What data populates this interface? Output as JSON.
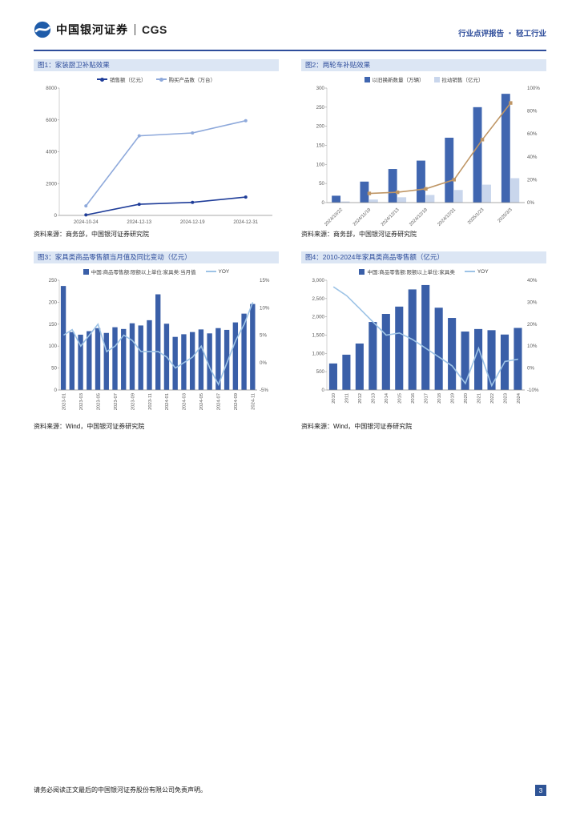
{
  "header": {
    "brand": "中国银河证券",
    "brand_suffix": "CGS",
    "report_type": "行业点评报告",
    "separator": "•",
    "industry": "轻工行业",
    "accent_color": "#2E4D9B"
  },
  "footer": {
    "disclaimer": "请务必阅读正文最后的中国银河证券股份有限公司免责声明。",
    "page_number": "3"
  },
  "chart_data": [
    {
      "figure": "图1",
      "title": "图1：家装厨卫补贴效果",
      "source": "资料来源：商务部，中国银河证券研究院",
      "type": "line",
      "legend_position": "top",
      "grid": false,
      "categories": [
        "2024-10-24",
        "2024-12-13",
        "2024-12-19",
        "2024-12-31"
      ],
      "series": [
        {
          "name": "销售额（亿元）",
          "type": "line",
          "axis": "left",
          "color": "#1F3D99",
          "marker": "circle",
          "values": [
            30,
            700,
            820,
            1150
          ]
        },
        {
          "name": "购买产品数（万台）",
          "type": "line",
          "axis": "left",
          "color": "#8EA9DB",
          "marker": "circle",
          "values": [
            600,
            5000,
            5180,
            5950
          ]
        }
      ],
      "left_axis": {
        "min": 0,
        "max": 8000,
        "ticks": [
          0,
          2000,
          4000,
          6000,
          8000
        ]
      },
      "x_rotate": 0,
      "x_every": 1
    },
    {
      "figure": "图2",
      "title": "图2：两轮车补贴效果",
      "source": "资料来源：商务部，中国银河证券研究院",
      "type": "bar+line",
      "legend_position": "top",
      "grid": false,
      "categories": [
        "2024/10/22",
        "2024/11/19",
        "2024/12/13",
        "2024/12/19",
        "2024/12/31",
        "2025/1/23",
        "2025/3/3"
      ],
      "series": [
        {
          "name": "以旧换新数量（万辆）",
          "type": "bar",
          "axis": "left",
          "color": "#4066B0",
          "values": [
            18,
            55,
            88,
            110,
            170,
            250,
            285
          ]
        },
        {
          "name": "拉动销售（亿元）",
          "type": "bar",
          "axis": "left",
          "color": "#C9D6EC",
          "values": [
            3,
            8,
            14,
            20,
            33,
            47,
            64
          ]
        },
        {
          "name": "",
          "legend": false,
          "type": "line",
          "axis": "right",
          "color": "#BF9665",
          "marker": "square",
          "values": [
            null,
            8,
            9,
            12,
            20,
            55,
            87
          ]
        }
      ],
      "left_axis": {
        "min": 0,
        "max": 300,
        "ticks": [
          0,
          50,
          100,
          150,
          200,
          250,
          300
        ]
      },
      "right_axis": {
        "min": 0,
        "max": 100,
        "ticks": [
          0,
          20,
          40,
          60,
          80,
          100
        ],
        "labels": [
          "0%",
          "20%",
          "40%",
          "60%",
          "80%",
          "100%"
        ]
      },
      "x_rotate": 45,
      "x_every": 1
    },
    {
      "figure": "图3",
      "title": "图3：家具类商品零售额当月值及同比变动（亿元）",
      "source": "资料来源：Wind，中国银河证券研究院",
      "type": "bar+line",
      "legend_position": "top",
      "grid": false,
      "categories": [
        "2023-01",
        "2023-02",
        "2023-03",
        "2023-04",
        "2023-05",
        "2023-06",
        "2023-07",
        "2023-08",
        "2023-09",
        "2023-10",
        "2023-11",
        "2023-12",
        "2024-01",
        "2024-02",
        "2024-03",
        "2024-04",
        "2024-05",
        "2024-06",
        "2024-07",
        "2024-08",
        "2024-09",
        "2024-10",
        "2024-11"
      ],
      "series": [
        {
          "name": "中国:商品零售额:限额以上单位:家具类:当月值",
          "type": "bar",
          "axis": "left",
          "color": "#3A5FA8",
          "values": [
            237,
            132,
            126,
            134,
            141,
            130,
            143,
            139,
            152,
            147,
            159,
            218,
            151,
            121,
            127,
            132,
            138,
            129,
            141,
            137,
            154,
            174,
            196
          ]
        },
        {
          "name": "YOY",
          "type": "line",
          "axis": "right",
          "color": "#9DC3E6",
          "values": [
            5,
            6,
            3,
            5,
            7,
            2,
            3,
            5,
            4,
            2,
            2,
            2,
            1,
            -1,
            0,
            1,
            3,
            -1,
            -4,
            0,
            4,
            7,
            11
          ]
        }
      ],
      "left_axis": {
        "min": 0,
        "max": 250,
        "ticks": [
          0,
          50,
          100,
          150,
          200,
          250
        ]
      },
      "right_axis": {
        "min": -5,
        "max": 15,
        "ticks": [
          -5,
          0,
          5,
          10,
          15
        ],
        "labels": [
          "-5%",
          "0%",
          "5%",
          "10%",
          "15%"
        ]
      },
      "x_rotate": 90,
      "x_every": 2
    },
    {
      "figure": "图4",
      "title": "图4：2010-2024年家具类商品零售额（亿元）",
      "source": "资料来源：Wind，中国银河证券研究院",
      "type": "bar+line",
      "legend_position": "top",
      "grid": false,
      "categories": [
        "2010",
        "2011",
        "2012",
        "2013",
        "2014",
        "2015",
        "2016",
        "2017",
        "2018",
        "2019",
        "2020",
        "2021",
        "2022",
        "2023",
        "2024"
      ],
      "series": [
        {
          "name": "中国:商品零售额:限额以上单位:家具类",
          "type": "bar",
          "axis": "left",
          "color": "#3A5FA8",
          "values": [
            725,
            965,
            1270,
            1860,
            2080,
            2280,
            2750,
            2870,
            2250,
            1970,
            1598,
            1667,
            1635,
            1516,
            1697
          ]
        },
        {
          "name": "YOY",
          "type": "line",
          "axis": "right",
          "color": "#9DC3E6",
          "values": [
            37,
            33,
            27,
            21,
            15,
            16,
            13,
            9,
            5,
            1,
            -7,
            9,
            -8,
            3,
            4
          ]
        }
      ],
      "left_axis": {
        "min": 0,
        "max": 3000,
        "ticks": [
          0,
          500,
          1000,
          1500,
          2000,
          2500,
          3000
        ],
        "labels": [
          "0",
          "500",
          "1,000",
          "1,500",
          "2,000",
          "2,500",
          "3,000"
        ]
      },
      "right_axis": {
        "min": -10,
        "max": 40,
        "ticks": [
          -10,
          0,
          10,
          20,
          30,
          40
        ],
        "labels": [
          "-10%",
          "0%",
          "10%",
          "20%",
          "30%",
          "40%"
        ]
      },
      "x_rotate": 90,
      "x_every": 1
    }
  ]
}
